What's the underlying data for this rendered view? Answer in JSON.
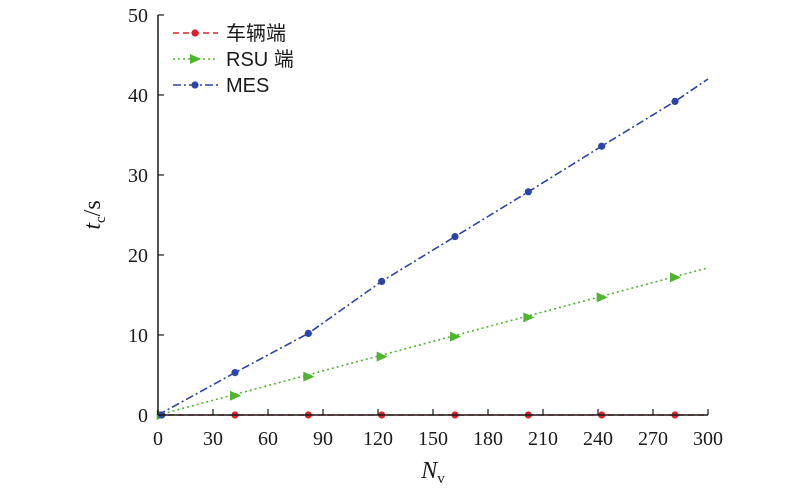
{
  "chart_data": {
    "type": "line",
    "xlabel": {
      "main": "N",
      "sub": "v"
    },
    "ylabel": {
      "main": "t",
      "sub": "c",
      "unit": "/s"
    },
    "xlim": [
      0,
      300
    ],
    "ylim": [
      0,
      50
    ],
    "xticks": [
      0,
      30,
      60,
      90,
      120,
      150,
      180,
      210,
      240,
      270,
      300
    ],
    "yticks": [
      0,
      10,
      20,
      30,
      40,
      50
    ],
    "grid": false,
    "legend_position": "top-left",
    "series": [
      {
        "name": "车辆端",
        "color": "#d8232a",
        "marker": "circle",
        "dash": "dashed",
        "line_x": [
          0,
          300
        ],
        "line_y": [
          0,
          0
        ],
        "markers_x": [
          2,
          42,
          82,
          122,
          162,
          202,
          242,
          282
        ],
        "markers_y": [
          0,
          0,
          0,
          0,
          0,
          0,
          0,
          0
        ]
      },
      {
        "name": "RSU 端",
        "color": "#4fb52f",
        "marker": "triangle-right",
        "dash": "dotted",
        "line_x": [
          0,
          300
        ],
        "line_y": [
          0,
          18.4
        ],
        "markers_x": [
          2,
          42,
          82,
          122,
          162,
          202,
          242,
          282
        ],
        "markers_y": [
          0,
          2.4,
          4.8,
          7.3,
          9.8,
          12.2,
          14.7,
          17.2
        ]
      },
      {
        "name": "MES",
        "color": "#2b44a6",
        "marker": "circle",
        "dash": "dashdot",
        "line_x": [
          0,
          42,
          82,
          122,
          162,
          202,
          242,
          282,
          300
        ],
        "line_y": [
          0,
          5.3,
          10.2,
          16.7,
          22.3,
          27.9,
          33.6,
          39.2,
          42.0
        ],
        "markers_x": [
          2,
          42,
          82,
          122,
          162,
          202,
          242,
          282
        ],
        "markers_y": [
          0,
          5.3,
          10.2,
          16.7,
          22.3,
          27.9,
          33.6,
          39.2
        ]
      }
    ]
  }
}
